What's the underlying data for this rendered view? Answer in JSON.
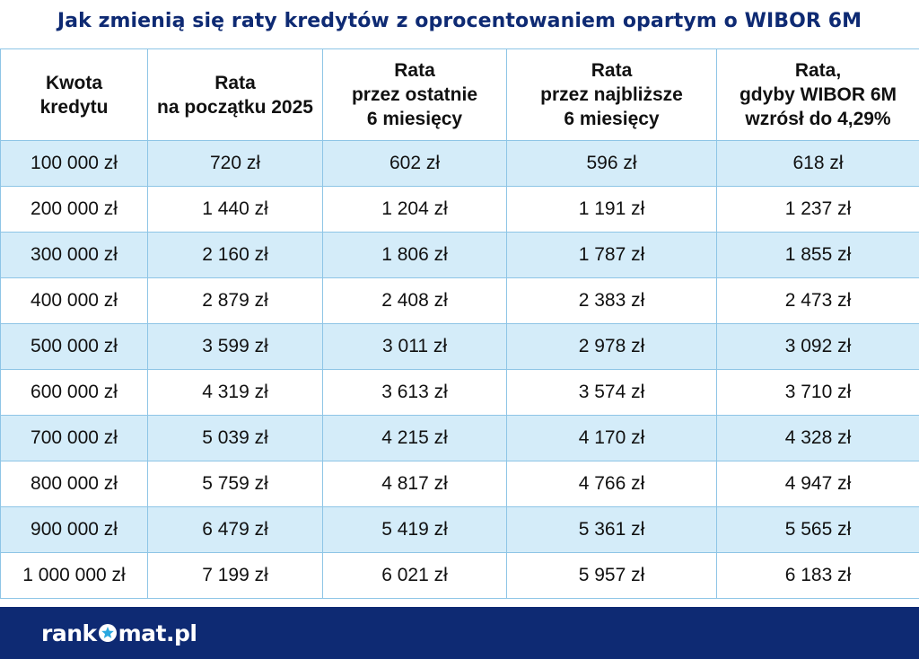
{
  "title": "Jak zmienią się raty kredytów z oprocentowaniem opartym o WIBOR 6M",
  "colors": {
    "title": "#0e2a73",
    "footer": "#0e2a73",
    "row_highlight": "#d4ecf9",
    "grid": "#8ec5e6"
  },
  "chart_data": {
    "type": "table",
    "columns": [
      [
        "Kwota",
        "kredytu"
      ],
      [
        "Rata",
        "na początku 2025"
      ],
      [
        "Rata",
        "przez ostatnie",
        "6 miesięcy"
      ],
      [
        "Rata",
        "przez najbliższe",
        "6 miesięcy"
      ],
      [
        "Rata,",
        "gdyby WIBOR 6M",
        "wzrósł do 4,29%"
      ]
    ],
    "rows": [
      [
        "100 000 zł",
        "720 zł",
        "602 zł",
        "596 zł",
        "618 zł"
      ],
      [
        "200 000 zł",
        "1 440 zł",
        "1 204 zł",
        "1 191 zł",
        "1 237 zł"
      ],
      [
        "300 000 zł",
        "2 160 zł",
        "1 806 zł",
        "1 787 zł",
        "1 855 zł"
      ],
      [
        "400 000 zł",
        "2 879 zł",
        "2 408 zł",
        "2 383 zł",
        "2 473 zł"
      ],
      [
        "500 000 zł",
        "3 599 zł",
        "3 011 zł",
        "2 978 zł",
        "3 092 zł"
      ],
      [
        "600 000 zł",
        "4 319 zł",
        "3 613 zł",
        "3 574 zł",
        "3 710 zł"
      ],
      [
        "700 000 zł",
        "5 039 zł",
        "4 215 zł",
        "4 170 zł",
        "4 328 zł"
      ],
      [
        "800 000 zł",
        "5 759 zł",
        "4 817 zł",
        "4 766 zł",
        "4 947 zł"
      ],
      [
        "900 000 zł",
        "6 479 zł",
        "5 419 zł",
        "5 361 zł",
        "5 565 zł"
      ],
      [
        "1 000 000 zł",
        "7 199 zł",
        "6 021 zł",
        "5 957 zł",
        "6 183 zł"
      ]
    ]
  },
  "footer": {
    "logo_left": "rank",
    "logo_right": "mat.pl",
    "logo_icon": "star-circle-icon"
  }
}
